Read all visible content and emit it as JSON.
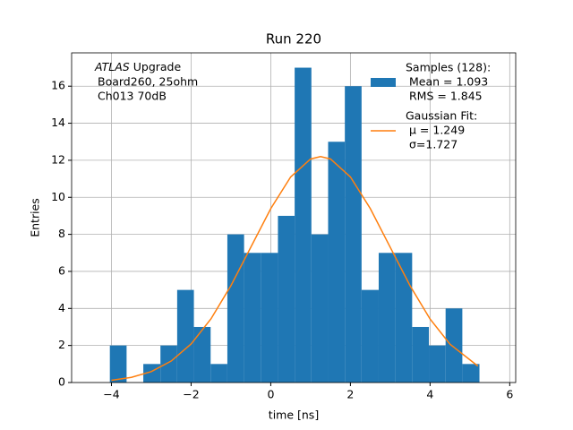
{
  "chart_data": {
    "type": "histogram",
    "title": "Run 220",
    "xlabel": "time [ns]",
    "ylabel": "Entries",
    "annotation": {
      "emphasis": "ATLAS",
      "lines": [
        "Upgrade",
        "Board260, 25ohm",
        "Ch013 70dB"
      ]
    },
    "bins": [
      -4.04,
      -3.62,
      -3.2,
      -2.77,
      -2.35,
      -1.93,
      -1.51,
      -1.09,
      -0.67,
      -0.24,
      0.18,
      0.6,
      1.02,
      1.44,
      1.86,
      2.28,
      2.71,
      3.13,
      3.55,
      3.97,
      4.39,
      4.81,
      5.24
    ],
    "series": [
      {
        "name": "Samples (128):",
        "stats": [
          "Mean = 1.093",
          "RMS = 1.845"
        ],
        "color": "#1f77b4",
        "values": [
          2,
          0,
          1,
          2,
          5,
          3,
          1,
          8,
          7,
          7,
          9,
          17,
          8,
          13,
          16,
          5,
          7,
          7,
          3,
          2,
          4,
          1
        ]
      },
      {
        "name": "Gaussian Fit:",
        "stats": [
          "μ = 1.249",
          "σ=1.727"
        ],
        "color": "#ff7f0e",
        "type": "line",
        "x": [
          -4,
          -3.5,
          -3,
          -2.5,
          -2,
          -1.5,
          -1,
          0,
          0.5,
          1,
          1.25,
          1.5,
          2,
          2.5,
          3,
          3.5,
          4,
          4.5,
          5.2
        ],
        "values": [
          0.12,
          0.28,
          0.59,
          1.16,
          2.08,
          3.44,
          5.23,
          9.39,
          11.1,
          12.07,
          12.2,
          12.07,
          11.1,
          9.39,
          7.3,
          5.22,
          3.43,
          2.07,
          0.89
        ]
      }
    ],
    "xlim": [
      -5,
      6.15
    ],
    "ylim": [
      0,
      17.8
    ],
    "xticks": [
      {
        "value": -4,
        "label": "−4"
      },
      {
        "value": -2,
        "label": "−2"
      },
      0,
      2,
      4,
      6
    ],
    "yticks": [
      0,
      2,
      4,
      6,
      8,
      10,
      12,
      14,
      16
    ],
    "grid": true
  }
}
